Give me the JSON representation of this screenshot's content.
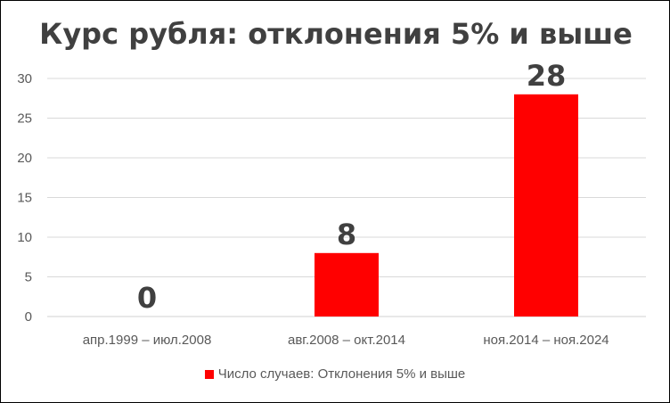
{
  "chart_data": {
    "type": "bar",
    "title": "Курс рубля: отклонения 5% и выше",
    "categories": [
      "апр.1999 – июл.2008",
      "авг.2008 – окт.2014",
      "ноя.2014 – ноя.2024"
    ],
    "series": [
      {
        "name": "Число случаев: Отклонения 5% и выше",
        "values": [
          0,
          8,
          28
        ],
        "color": "#ff0000"
      }
    ],
    "data_labels": [
      "0",
      "8",
      "28"
    ],
    "yticks": [
      "0",
      "5",
      "10",
      "15",
      "20",
      "25",
      "30"
    ],
    "ylim": [
      0,
      30
    ],
    "grid": true,
    "legend_position": "bottom"
  }
}
